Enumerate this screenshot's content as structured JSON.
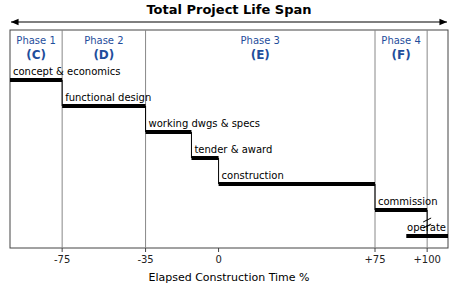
{
  "chart_data": {
    "type": "gantt",
    "title": "Total Project Life Span",
    "xlabel": "Elapsed Construction Time %",
    "categories": [
      "concept & economics",
      "functional design",
      "working dwgs & specs",
      "tender & award",
      "construction",
      "commission",
      "operate"
    ],
    "start": [
      -100,
      -75,
      -35,
      -13,
      0,
      75,
      90
    ],
    "end": [
      -75,
      -35,
      -13,
      0,
      75,
      100,
      110
    ],
    "color": "#000000",
    "xlim": [
      -100,
      110
    ],
    "xticks": [
      -75,
      -35,
      0,
      {
        "value": 75,
        "label": "+75"
      },
      {
        "value": 100,
        "label": "+100"
      }
    ],
    "phase_dividers": [
      -75,
      -35,
      75,
      100
    ],
    "phases": [
      {
        "name": "Phase 1",
        "code": "(C)"
      },
      {
        "name": "Phase 2",
        "code": "(D)"
      },
      {
        "name": "Phase 3",
        "code": "(E)"
      },
      {
        "name": "Phase 4",
        "code": "(F)"
      }
    ]
  }
}
